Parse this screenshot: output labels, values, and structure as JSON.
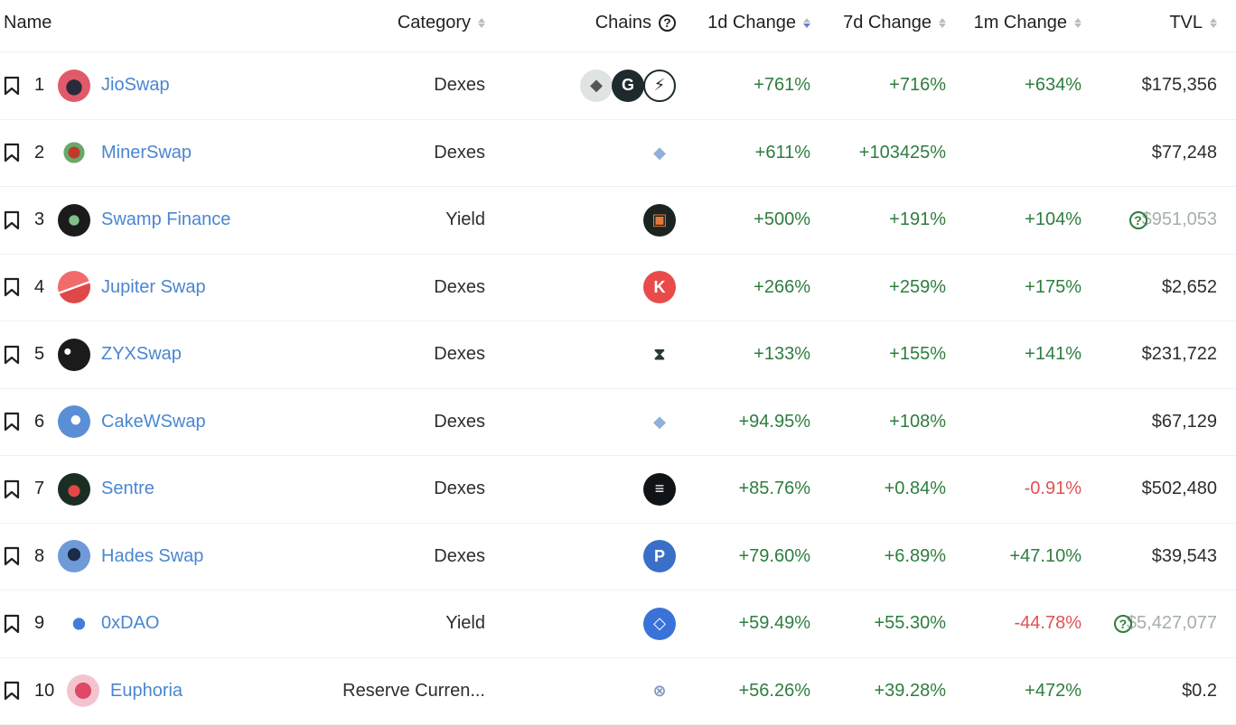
{
  "headers": {
    "name": "Name",
    "category": "Category",
    "chains": "Chains",
    "change_1d": "1d Change",
    "change_7d": "7d Change",
    "change_1m": "1m Change",
    "tvl": "TVL"
  },
  "rows": [
    {
      "rank": "1",
      "name": "JioSwap",
      "category": "Dexes",
      "chains": [
        "ethereum-icon",
        "g-chain-icon",
        "lightning-chain-icon"
      ],
      "change_1d": "+761%",
      "change_7d": "+716%",
      "change_1m": "+634%",
      "tvl": "$175,356"
    },
    {
      "rank": "2",
      "name": "MinerSwap",
      "category": "Dexes",
      "chains": [
        "ethereum-pow-icon"
      ],
      "change_1d": "+611%",
      "change_7d": "+103425%",
      "change_1m": "",
      "tvl": "$77,248"
    },
    {
      "rank": "3",
      "name": "Swamp Finance",
      "category": "Yield",
      "chains": [
        "cube-chain-icon"
      ],
      "change_1d": "+500%",
      "change_7d": "+191%",
      "change_1m": "+104%",
      "tvl": "$951,053"
    },
    {
      "rank": "4",
      "name": "Jupiter Swap",
      "category": "Dexes",
      "chains": [
        "kava-icon"
      ],
      "change_1d": "+266%",
      "change_7d": "+259%",
      "change_1m": "+175%",
      "tvl": "$2,652"
    },
    {
      "rank": "5",
      "name": "ZYXSwap",
      "category": "Dexes",
      "chains": [
        "hourglass-chain-icon"
      ],
      "change_1d": "+133%",
      "change_7d": "+155%",
      "change_1m": "+141%",
      "tvl": "$231,722"
    },
    {
      "rank": "6",
      "name": "CakeWSwap",
      "category": "Dexes",
      "chains": [
        "ethereum-pow-icon"
      ],
      "change_1d": "+94.95%",
      "change_7d": "+108%",
      "change_1m": "",
      "tvl": "$67,129"
    },
    {
      "rank": "7",
      "name": "Sentre",
      "category": "Dexes",
      "chains": [
        "solana-icon"
      ],
      "change_1d": "+85.76%",
      "change_7d": "+0.84%",
      "change_1m": "-0.91%",
      "tvl": "$502,480"
    },
    {
      "rank": "8",
      "name": "Hades Swap",
      "category": "Dexes",
      "chains": [
        "polkadot-parachain-icon"
      ],
      "change_1d": "+79.60%",
      "change_7d": "+6.89%",
      "change_1m": "+47.10%",
      "tvl": "$39,543"
    },
    {
      "rank": "9",
      "name": "0xDAO",
      "category": "Yield",
      "chains": [
        "fantom-icon"
      ],
      "change_1d": "+59.49%",
      "change_7d": "+55.30%",
      "change_1m": "-44.78%",
      "tvl": "$5,427,077"
    },
    {
      "rank": "10",
      "name": "Euphoria",
      "category": "Reserve Curren...",
      "chains": [
        "link-chain-icon"
      ],
      "change_1d": "+56.26%",
      "change_7d": "+39.28%",
      "change_1m": "+472%",
      "tvl": "$0.2"
    }
  ],
  "tvl_unverified_rows": [
    3,
    9
  ],
  "colors": {
    "positive": "#2e7d3e",
    "negative": "#e05252",
    "link": "#4a86d1",
    "sort_active": "#5a7fd6"
  }
}
